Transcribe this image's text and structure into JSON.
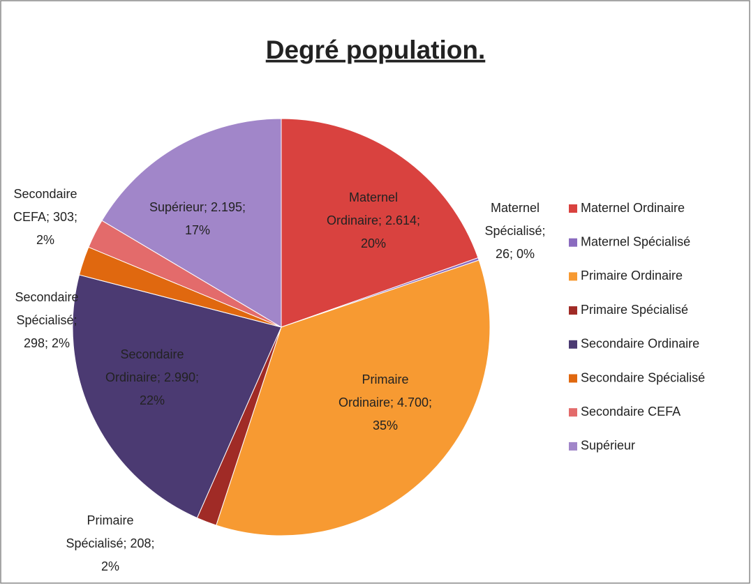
{
  "chart_data": {
    "type": "pie",
    "title": "Degré population.",
    "categories": [
      "Maternel Ordinaire",
      "Maternel Spécialisé",
      "Primaire Ordinaire",
      "Primaire Spécialisé",
      "Secondaire Ordinaire",
      "Secondaire Spécialisé",
      "Secondaire CEFA",
      "Supérieur"
    ],
    "values": [
      2614,
      26,
      4700,
      208,
      2990,
      298,
      303,
      2195
    ],
    "data_labels": [
      [
        "Maternel",
        "Ordinaire; 2.614;",
        "20%"
      ],
      [
        "Maternel",
        "Spécialisé;",
        "26; 0%"
      ],
      [
        "Primaire",
        "Ordinaire; 4.700;",
        "35%"
      ],
      [
        "Primaire",
        "Spécialisé; 208;",
        "2%"
      ],
      [
        "Secondaire",
        "Ordinaire; 2.990;",
        "22%"
      ],
      [
        "Secondaire",
        "Spécialisé;",
        "298; 2%"
      ],
      [
        "Secondaire",
        "CEFA; 303;",
        "2%"
      ],
      [
        "Supérieur; 2.195;",
        "17%"
      ]
    ],
    "colors": [
      "#d9423f",
      "#8a6bbf",
      "#f79a32",
      "#a02b26",
      "#4b3a72",
      "#e0680f",
      "#e36b6b",
      "#a186c9"
    ],
    "legend": "right"
  }
}
